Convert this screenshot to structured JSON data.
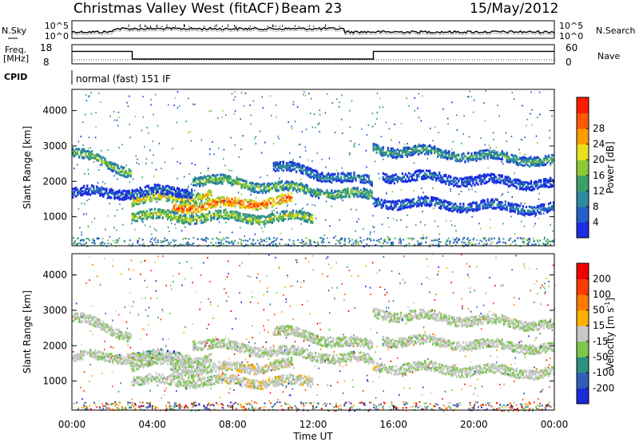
{
  "header": {
    "station": "Christmas Valley West (fitACF)",
    "beam": "Beam 23",
    "date": "15/May/2012"
  },
  "nsky_panel": {
    "left_label": "N.Sky",
    "right_label": "N.Search",
    "ticks": [
      "10^5",
      "10^0"
    ]
  },
  "freq_panel": {
    "left_label": "Freq.",
    "unit": "[MHz]",
    "left_ticks": [
      "18",
      "8"
    ],
    "right_label": "Nave",
    "right_ticks": [
      "60",
      "0"
    ],
    "freq_steps": [
      {
        "from_hour": 0,
        "to_hour": 3.0,
        "mhz": 14.5
      },
      {
        "from_hour": 3.0,
        "to_hour": 15.0,
        "mhz": 10.5
      },
      {
        "from_hour": 15.0,
        "to_hour": 24.0,
        "mhz": 14.5
      }
    ]
  },
  "cpid": {
    "label": "CPID",
    "value": "normal (fast) 151 IF"
  },
  "chart_data": [
    {
      "type": "heatmap",
      "name": "power",
      "ylabel": "Slant Range [km]",
      "xlabel": "",
      "ylim": [
        180,
        4600
      ],
      "xlim_hours": [
        0,
        24
      ],
      "y_ticks": [
        "1000",
        "2000",
        "3000",
        "4000"
      ],
      "colorbar": {
        "label": "Power [dB]",
        "ticks": [
          "4",
          "8",
          "12",
          "16",
          "20",
          "24",
          "28"
        ],
        "colors": [
          "#1b2ee0",
          "#2460c8",
          "#2e8c9e",
          "#3aa068",
          "#8cc838",
          "#e8e020",
          "#ff9c00",
          "#ff5a00",
          "#ff1a00"
        ]
      },
      "bands": [
        {
          "from_hour": 0.0,
          "to_hour": 3.0,
          "range_start": 2850,
          "range_end": 2300,
          "intensity": 0.5
        },
        {
          "from_hour": 3.0,
          "to_hour": 7.0,
          "range_start": 1500,
          "range_end": 1650,
          "intensity": 0.7
        },
        {
          "from_hour": 5.0,
          "to_hour": 11.0,
          "range_start": 1300,
          "range_end": 1500,
          "intensity": 0.9
        },
        {
          "from_hour": 3.0,
          "to_hour": 12.0,
          "range_start": 1050,
          "range_end": 1000,
          "intensity": 0.6
        },
        {
          "from_hour": 6.0,
          "to_hour": 15.0,
          "range_start": 2100,
          "range_end": 1600,
          "intensity": 0.5
        },
        {
          "from_hour": 10.0,
          "to_hour": 15.0,
          "range_start": 2450,
          "range_end": 2000,
          "intensity": 0.3
        },
        {
          "from_hour": 0.0,
          "to_hour": 6.0,
          "range_start": 1700,
          "range_end": 1750,
          "intensity": 0.2
        },
        {
          "from_hour": 15.0,
          "to_hour": 24.0,
          "range_start": 2950,
          "range_end": 2600,
          "intensity": 0.4
        },
        {
          "from_hour": 15.5,
          "to_hour": 24.0,
          "range_start": 2200,
          "range_end": 1950,
          "intensity": 0.2
        },
        {
          "from_hour": 15.0,
          "to_hour": 24.0,
          "range_start": 1450,
          "range_end": 1250,
          "intensity": 0.25
        }
      ]
    },
    {
      "type": "heatmap",
      "name": "velocity",
      "ylabel": "Slant Range [km]",
      "xlabel": "Time UT",
      "ylim": [
        180,
        4600
      ],
      "xlim_hours": [
        0,
        24
      ],
      "x_ticks": [
        "00:00",
        "04:00",
        "08:00",
        "12:00",
        "16:00",
        "20:00",
        "00:00"
      ],
      "y_ticks": [
        "1000",
        "2000",
        "3000",
        "4000"
      ],
      "colorbar": {
        "label": "Velocity [m s",
        "label_sup": "-1",
        "label_end": "]",
        "ticks": [
          "200",
          "100",
          "50",
          "15",
          "-15",
          "-50",
          "-100",
          "-200"
        ],
        "colors": [
          "#1a2ad8",
          "#2f5cb8",
          "#2d8f7e",
          "#7bc84a",
          "#c8c8c8",
          "#ffb000",
          "#ff7a00",
          "#ff3c00",
          "#f00000"
        ]
      }
    }
  ]
}
